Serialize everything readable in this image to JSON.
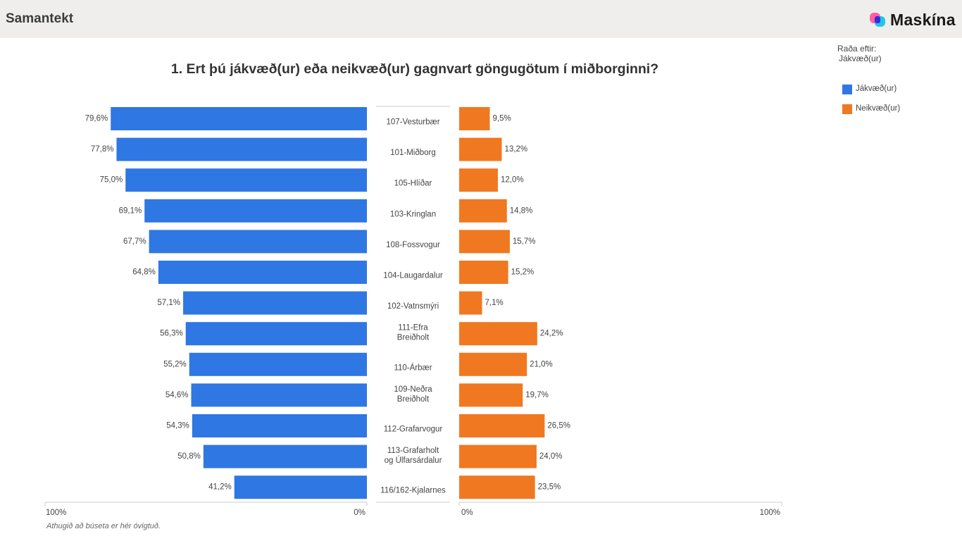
{
  "header": {
    "title": "Samantekt",
    "logo_text": "Maskína",
    "logo_icon": "maskina-logo-icon"
  },
  "sort": {
    "label": "Raða eftir:",
    "value": "Jákvæð(ur)"
  },
  "footnote": "Athugið að búseta er hér óvigtuð.",
  "colors": {
    "positive": "#2f77e3",
    "negative": "#f07821",
    "axis": "#cccccc",
    "text": "#444444"
  },
  "chart_data": {
    "type": "bar",
    "title": "1. Ert þú jákvæð(ur) eða neikvæð(ur) gagnvart göngugötum í miðborginni?",
    "categories": [
      "107-Vesturbær",
      "101-Miðborg",
      "105-Hlíðar",
      "103-Kringlan",
      "108-Fossvogur",
      "104-Laugardalur",
      "102-Vatnsmýri",
      "111-Efra Breiðholt",
      "110-Árbær",
      "109-Neðra Breiðholt",
      "112-Grafarvogur",
      "113-Grafarholt og Úlfarsárdalur",
      "116/162-Kjalarnes"
    ],
    "series": [
      {
        "name": "Jákvæð(ur)",
        "values": [
          79.6,
          77.8,
          75.0,
          69.1,
          67.7,
          64.8,
          57.1,
          56.3,
          55.2,
          54.6,
          54.3,
          50.8,
          41.2
        ],
        "labels": [
          "79,6%",
          "77,8%",
          "75,0%",
          "69,1%",
          "67,7%",
          "64,8%",
          "57,1%",
          "56,3%",
          "55,2%",
          "54,6%",
          "54,3%",
          "50,8%",
          "41,2%"
        ]
      },
      {
        "name": "Neikvæð(ur)",
        "values": [
          9.5,
          13.2,
          12.0,
          14.8,
          15.7,
          15.2,
          7.1,
          24.2,
          21.0,
          19.7,
          26.5,
          24.0,
          23.5
        ],
        "labels": [
          "9,5%",
          "13,2%",
          "12,0%",
          "14,8%",
          "15,7%",
          "15,2%",
          "7,1%",
          "24,2%",
          "21,0%",
          "19,7%",
          "26,5%",
          "24,0%",
          "23,5%"
        ]
      }
    ],
    "left_axis": {
      "ticks": [
        "100%",
        "0%"
      ],
      "range": [
        100,
        0
      ]
    },
    "right_axis": {
      "ticks": [
        "0%",
        "100%"
      ],
      "range": [
        0,
        100
      ]
    },
    "legend_position": "right",
    "grid": false
  }
}
